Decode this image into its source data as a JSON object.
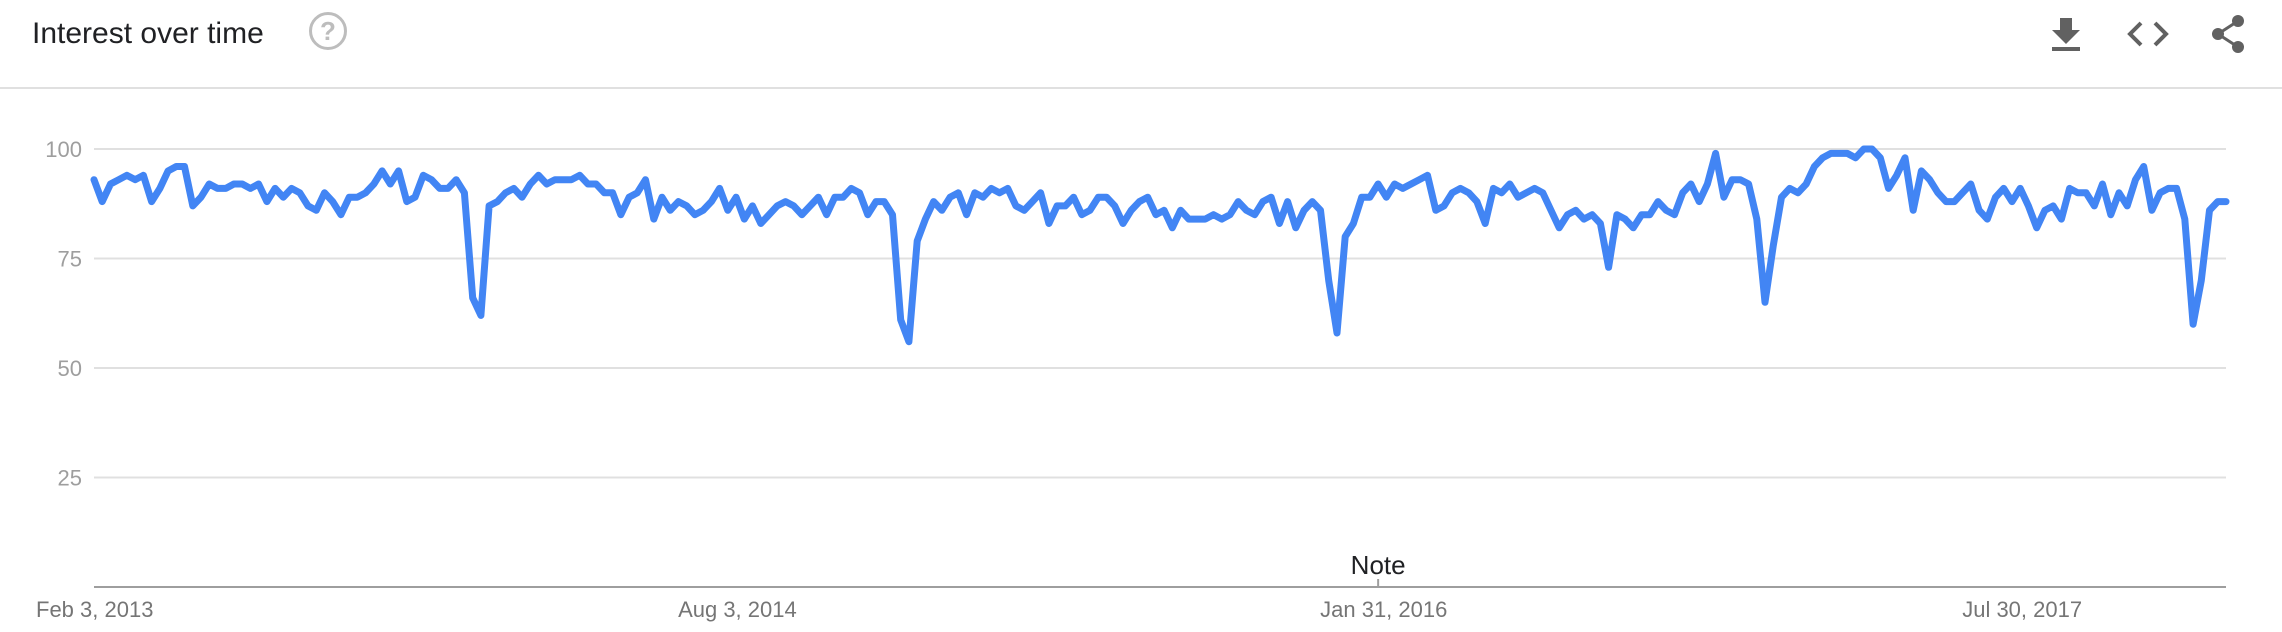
{
  "header": {
    "title": "Interest over time",
    "help_icon": "help-circle-icon",
    "actions": [
      {
        "name": "download-icon",
        "label": "download"
      },
      {
        "name": "embed-code-icon",
        "label": "embed"
      },
      {
        "name": "share-icon",
        "label": "share"
      }
    ]
  },
  "chart_data": {
    "type": "line",
    "title": "",
    "xlabel": "",
    "ylabel": "",
    "ylim": [
      0,
      100
    ],
    "yticks": [
      25,
      50,
      75,
      100
    ],
    "xticks": [
      "Feb 3, 2013",
      "Aug 3, 2014",
      "Jan 31, 2016",
      "Jul 30, 2017"
    ],
    "xtick_index": [
      0,
      78,
      156,
      234
    ],
    "grid": true,
    "legend": "none",
    "line_color": "#4285f4",
    "annotation": {
      "label": "Note",
      "index": 156
    },
    "series": [
      {
        "values": [
          93,
          88,
          92,
          93,
          94,
          93,
          94,
          88,
          91,
          95,
          96,
          96,
          87,
          89,
          92,
          91,
          91,
          92,
          92,
          91,
          92,
          88,
          91,
          89,
          91,
          90,
          87,
          86,
          90,
          88,
          85,
          89,
          89,
          90,
          92,
          95,
          92,
          95,
          88,
          89,
          94,
          93,
          91,
          91,
          93,
          90,
          66,
          62,
          87,
          88,
          90,
          91,
          89,
          92,
          94,
          92,
          93,
          93,
          93,
          94,
          92,
          92,
          90,
          90,
          85,
          89,
          90,
          93,
          84,
          89,
          86,
          88,
          87,
          85,
          86,
          88,
          91,
          86,
          89,
          84,
          87,
          83,
          85,
          87,
          88,
          87,
          85,
          87,
          89,
          85,
          89,
          89,
          91,
          90,
          85,
          88,
          88,
          85,
          61,
          56,
          79,
          84,
          88,
          86,
          89,
          90,
          85,
          90,
          89,
          91,
          90,
          91,
          87,
          86,
          88,
          90,
          83,
          87,
          87,
          89,
          85,
          86,
          89,
          89,
          87,
          83,
          86,
          88,
          89,
          85,
          86,
          82,
          86,
          84,
          84,
          84,
          85,
          84,
          85,
          88,
          86,
          85,
          88,
          89,
          83,
          88,
          82,
          86,
          88,
          86,
          70,
          58,
          80,
          83,
          89,
          89,
          92,
          89,
          92,
          91,
          92,
          93,
          94,
          86,
          87,
          90,
          91,
          90,
          88,
          83,
          91,
          90,
          92,
          89,
          90,
          91,
          90,
          86,
          82,
          85,
          86,
          84,
          85,
          83,
          73,
          85,
          84,
          82,
          85,
          85,
          88,
          86,
          85,
          90,
          92,
          88,
          92,
          99,
          89,
          93,
          93,
          92,
          84,
          65,
          78,
          89,
          91,
          90,
          92,
          96,
          98,
          99,
          99,
          99,
          98,
          100,
          100,
          98,
          91,
          94,
          98,
          86,
          95,
          93,
          90,
          88,
          88,
          90,
          92,
          86,
          84,
          89,
          91,
          88,
          91,
          87,
          82,
          86,
          87,
          84,
          91,
          90,
          90,
          87,
          92,
          85,
          90,
          87,
          93,
          96,
          86,
          90,
          91,
          91,
          84,
          60,
          70,
          86,
          88,
          88
        ]
      }
    ]
  }
}
